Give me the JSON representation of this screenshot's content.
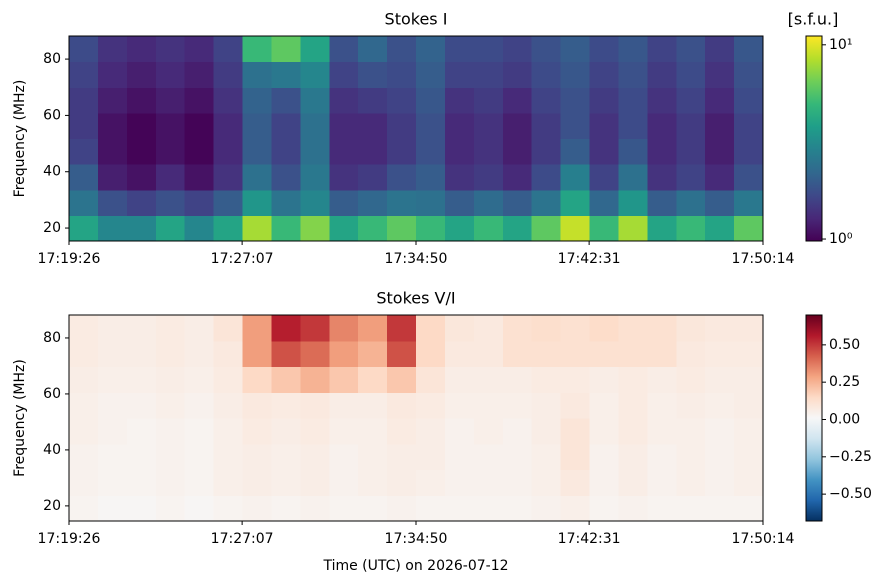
{
  "chart_data": [
    {
      "type": "heatmap",
      "title": "Stokes I",
      "ylabel": "Frequency (MHz)",
      "xlim": [
        "17:19:26",
        "17:50:14"
      ],
      "xticks": [
        "17:19:26",
        "17:27:07",
        "17:34:50",
        "17:42:31",
        "17:50:14"
      ],
      "ylim": [
        15.4,
        88.2
      ],
      "yticks": [
        20,
        40,
        60,
        80
      ],
      "colormap": "viridis",
      "colorbar": {
        "label": "[s.f.u.]",
        "scale": "log",
        "clim": [
          0.977,
          11.1
        ],
        "ticks": [
          {
            "value": 1,
            "label": "10⁰"
          },
          {
            "value": 10,
            "label": "10¹"
          }
        ]
      },
      "z": [
        [
          4,
          3,
          3,
          4,
          3,
          4,
          8,
          5,
          7,
          4,
          5,
          6,
          5,
          4,
          5,
          4,
          6,
          9,
          5,
          8,
          4,
          5,
          4,
          6
        ],
        [
          2.5,
          1.8,
          1.6,
          1.8,
          1.6,
          2,
          3.5,
          2.5,
          3,
          2,
          2.2,
          2.5,
          2.4,
          2,
          2.3,
          2,
          2.5,
          4,
          2.2,
          3.5,
          2,
          2.4,
          2,
          2.6
        ],
        [
          2,
          1.2,
          1.1,
          1.3,
          1.1,
          1.4,
          2.4,
          1.8,
          2.6,
          1.4,
          1.5,
          1.8,
          2,
          1.4,
          1.5,
          1.3,
          1.7,
          2.8,
          1.6,
          2.4,
          1.4,
          1.6,
          1.3,
          1.8
        ],
        [
          1.6,
          1.1,
          1,
          1.1,
          1,
          1.3,
          2,
          1.6,
          2.4,
          1.3,
          1.3,
          1.5,
          1.8,
          1.3,
          1.4,
          1.2,
          1.5,
          2,
          1.4,
          1.9,
          1.3,
          1.5,
          1.2,
          1.6
        ],
        [
          1.5,
          1.1,
          1,
          1.1,
          1,
          1.3,
          2,
          1.6,
          2.4,
          1.3,
          1.3,
          1.5,
          1.8,
          1.3,
          1.4,
          1.2,
          1.5,
          1.8,
          1.4,
          1.7,
          1.3,
          1.5,
          1.2,
          1.6
        ],
        [
          1.5,
          1.2,
          1.1,
          1.2,
          1.1,
          1.4,
          2.1,
          1.8,
          2.6,
          1.4,
          1.5,
          1.6,
          1.9,
          1.4,
          1.5,
          1.3,
          1.6,
          1.8,
          1.5,
          1.7,
          1.4,
          1.6,
          1.3,
          1.7
        ],
        [
          1.6,
          1.3,
          1.2,
          1.3,
          1.2,
          1.5,
          2.4,
          2.6,
          3,
          1.6,
          1.8,
          1.7,
          2,
          1.6,
          1.6,
          1.5,
          1.7,
          1.9,
          1.6,
          1.8,
          1.5,
          1.7,
          1.4,
          1.8
        ],
        [
          1.7,
          1.4,
          1.3,
          1.4,
          1.3,
          1.6,
          5,
          6,
          4,
          1.8,
          2.2,
          1.8,
          2.1,
          1.7,
          1.7,
          1.6,
          1.8,
          2,
          1.7,
          1.9,
          1.6,
          1.8,
          1.5,
          1.9
        ]
      ]
    },
    {
      "type": "heatmap",
      "title": "Stokes V/I",
      "ylabel": "Frequency (MHz)",
      "xlabel": "Time (UTC) on 2026-07-12",
      "xlim": [
        "17:19:26",
        "17:50:14"
      ],
      "xticks": [
        "17:19:26",
        "17:27:07",
        "17:34:50",
        "17:42:31",
        "17:50:14"
      ],
      "ylim": [
        14.6,
        88.2
      ],
      "yticks": [
        20,
        40,
        60,
        80
      ],
      "colormap": "RdBu_r",
      "colorbar": {
        "scale": "linear",
        "clim": [
          -0.68,
          0.7
        ],
        "ticks": [
          {
            "value": 0.5,
            "label": "0.50"
          },
          {
            "value": 0.25,
            "label": "0.25"
          },
          {
            "value": 0,
            "label": "0.00"
          },
          {
            "value": -0.25,
            "label": "−0.25"
          },
          {
            "value": -0.5,
            "label": "−0.50"
          }
        ]
      },
      "z": [
        [
          0.03,
          0.02,
          0.02,
          0.03,
          0.02,
          0.03,
          0.04,
          0.03,
          0.04,
          0.03,
          0.03,
          0.04,
          0.03,
          0.03,
          0.03,
          0.03,
          0.04,
          0.05,
          0.03,
          0.04,
          0.03,
          0.03,
          0.03,
          0.03
        ],
        [
          0.04,
          0.03,
          0.03,
          0.04,
          0.03,
          0.05,
          0.06,
          0.05,
          0.06,
          0.04,
          0.05,
          0.06,
          0.05,
          0.04,
          0.04,
          0.04,
          0.05,
          0.08,
          0.04,
          0.06,
          0.04,
          0.05,
          0.04,
          0.05
        ],
        [
          0.04,
          0.03,
          0.03,
          0.04,
          0.03,
          0.05,
          0.06,
          0.05,
          0.06,
          0.04,
          0.05,
          0.06,
          0.06,
          0.04,
          0.04,
          0.04,
          0.05,
          0.1,
          0.04,
          0.06,
          0.04,
          0.05,
          0.04,
          0.05
        ],
        [
          0.05,
          0.04,
          0.03,
          0.04,
          0.03,
          0.05,
          0.07,
          0.06,
          0.07,
          0.05,
          0.05,
          0.07,
          0.06,
          0.04,
          0.05,
          0.04,
          0.06,
          0.1,
          0.05,
          0.07,
          0.05,
          0.05,
          0.04,
          0.05
        ],
        [
          0.05,
          0.04,
          0.04,
          0.05,
          0.04,
          0.06,
          0.08,
          0.07,
          0.08,
          0.06,
          0.06,
          0.08,
          0.07,
          0.05,
          0.05,
          0.05,
          0.06,
          0.08,
          0.05,
          0.07,
          0.05,
          0.06,
          0.05,
          0.06
        ],
        [
          0.06,
          0.05,
          0.05,
          0.06,
          0.05,
          0.07,
          0.15,
          0.2,
          0.25,
          0.2,
          0.15,
          0.2,
          0.1,
          0.06,
          0.06,
          0.06,
          0.07,
          0.07,
          0.06,
          0.07,
          0.06,
          0.07,
          0.06,
          0.06
        ],
        [
          0.07,
          0.06,
          0.06,
          0.07,
          0.06,
          0.08,
          0.3,
          0.45,
          0.4,
          0.3,
          0.25,
          0.45,
          0.15,
          0.08,
          0.08,
          0.12,
          0.12,
          0.12,
          0.12,
          0.12,
          0.12,
          0.08,
          0.07,
          0.07
        ],
        [
          0.07,
          0.06,
          0.06,
          0.07,
          0.06,
          0.1,
          0.3,
          0.55,
          0.5,
          0.35,
          0.3,
          0.5,
          0.15,
          0.09,
          0.08,
          0.12,
          0.13,
          0.12,
          0.14,
          0.12,
          0.12,
          0.09,
          0.08,
          0.08
        ]
      ]
    }
  ]
}
